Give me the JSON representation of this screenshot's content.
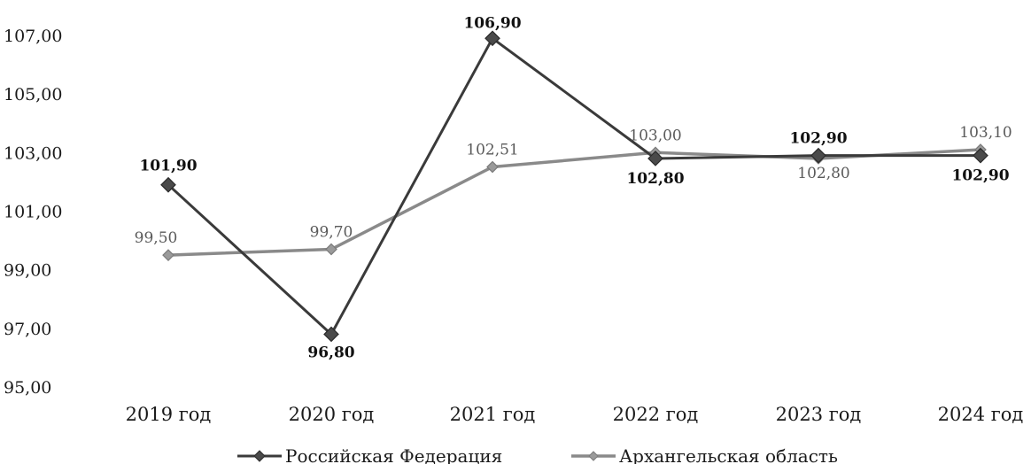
{
  "chart_data": {
    "type": "line",
    "title": "",
    "xlabel": "",
    "ylabel": "",
    "categories": [
      "2019 год",
      "2020 год",
      "2021 год",
      "2022 год",
      "2023 год",
      "2024 год"
    ],
    "ylim": [
      95,
      107
    ],
    "yticks": [
      "95,00",
      "97,00",
      "99,00",
      "101,00",
      "103,00",
      "105,00",
      "107,00"
    ],
    "grid": false,
    "legend_position": "bottom",
    "series": [
      {
        "name": "Российская Федерация",
        "values": [
          101.9,
          96.8,
          106.9,
          102.8,
          102.9,
          102.9
        ],
        "labels": [
          "101,90",
          "96,80",
          "106,90",
          "102,80",
          "102,90",
          "102,90"
        ],
        "color": "#3a3a3a"
      },
      {
        "name": "Архангельская область",
        "values": [
          99.5,
          99.7,
          102.51,
          103.0,
          102.8,
          103.1
        ],
        "labels": [
          "99,50",
          "99,70",
          "102,51",
          "103,00",
          "102,80",
          "103,10"
        ],
        "color": "#8a8a8a"
      }
    ]
  }
}
